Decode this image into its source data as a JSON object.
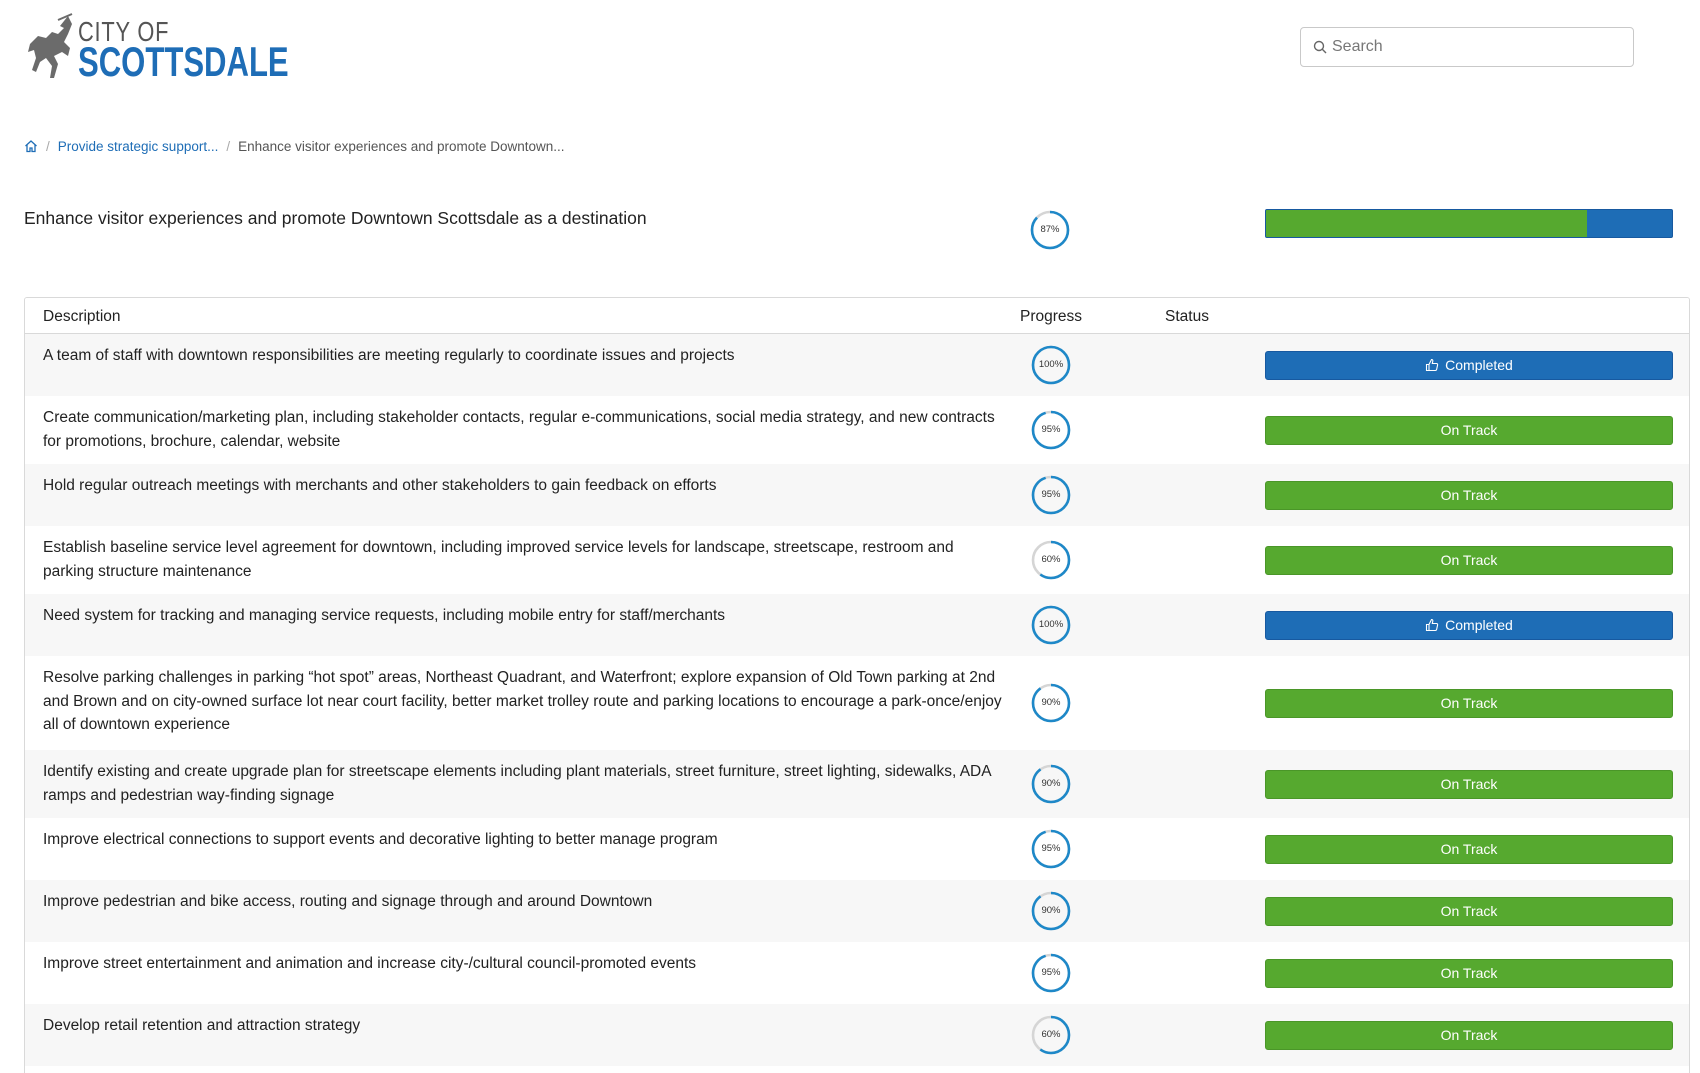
{
  "header": {
    "logo_city": "CITY OF",
    "logo_name": "SCOTTSDALE",
    "search_placeholder": "Search"
  },
  "breadcrumb": {
    "items": [
      "Provide strategic support...",
      "Enhance visitor experiences and promote Downtown..."
    ]
  },
  "goal": {
    "title": "Enhance visitor experiences and promote Downtown Scottsdale as a destination",
    "progress_label": "87%",
    "progress": 87,
    "bar_fraction_green": 0.79
  },
  "table": {
    "headers": {
      "description": "Description",
      "progress": "Progress",
      "status": "Status"
    },
    "rows": [
      {
        "description": "A team of staff with downtown responsibilities are meeting regularly to coordinate issues and projects",
        "progress": 100,
        "progress_label": "100%",
        "status": "Completed"
      },
      {
        "description": "Create communication/marketing plan, including stakeholder contacts, regular e-communications, social media strategy, and new contracts for promotions, brochure, calendar, website",
        "progress": 95,
        "progress_label": "95%",
        "status": "On Track"
      },
      {
        "description": "Hold regular outreach meetings with merchants and other stakeholders to gain feedback on efforts",
        "progress": 95,
        "progress_label": "95%",
        "status": "On Track"
      },
      {
        "description": "Establish baseline service level agreement for downtown, including improved service levels for landscape, streetscape, restroom and parking structure maintenance",
        "progress": 60,
        "progress_label": "60%",
        "status": "On Track"
      },
      {
        "description": "Need system for tracking and managing service requests, including mobile entry for staff/merchants",
        "progress": 100,
        "progress_label": "100%",
        "status": "Completed"
      },
      {
        "description": "Resolve parking challenges in parking “hot spot” areas, Northeast Quadrant, and Waterfront; explore expansion of Old Town parking at 2nd and Brown and on city-owned surface lot near court facility, better market trolley route and parking locations to encourage a park-once/enjoy all of downtown experience",
        "progress": 90,
        "progress_label": "90%",
        "status": "On Track"
      },
      {
        "description": "Identify existing and create upgrade plan for streetscape elements including plant materials, street furniture, street lighting, sidewalks, ADA ramps and pedestrian way-finding signage",
        "progress": 90,
        "progress_label": "90%",
        "status": "On Track"
      },
      {
        "description": "Improve electrical connections to support events and decorative lighting to better manage program",
        "progress": 95,
        "progress_label": "95%",
        "status": "On Track"
      },
      {
        "description": "Improve pedestrian and bike access, routing and signage through and around Downtown",
        "progress": 90,
        "progress_label": "90%",
        "status": "On Track"
      },
      {
        "description": "Improve street entertainment and animation and increase city-/cultural council-promoted events",
        "progress": 95,
        "progress_label": "95%",
        "status": "On Track"
      },
      {
        "description": "Develop retail retention and attraction strategy",
        "progress": 60,
        "progress_label": "60%",
        "status": "On Track"
      }
    ]
  },
  "colors": {
    "accent_blue": "#1e6db6",
    "on_track_green": "#56a92f",
    "donut_track": "#d5d5d5",
    "donut_fill": "#1e88c8"
  }
}
